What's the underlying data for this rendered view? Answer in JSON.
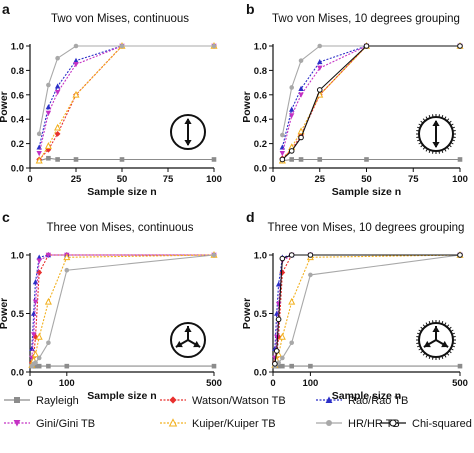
{
  "chart_data": [
    {
      "type": "line",
      "panel_label": "a",
      "title": "Two von Mises, continuous",
      "xlabel": "Sample size n",
      "ylabel": "Power",
      "xlim": [
        0,
        100
      ],
      "ylim": [
        0,
        1.0
      ],
      "xticks": [
        0,
        25,
        50,
        75,
        100
      ],
      "yticks": [
        0.0,
        0.2,
        0.4,
        0.6,
        0.8,
        1.0
      ],
      "grid": false,
      "icon": "bimodal-axial-icon",
      "series": [
        {
          "name": "Rayleigh",
          "x": [
            5,
            10,
            15,
            25,
            50,
            100
          ],
          "y": [
            0.06,
            0.08,
            0.07,
            0.07,
            0.07,
            0.07
          ]
        },
        {
          "name": "Watson/Watson TB",
          "x": [
            5,
            10,
            15,
            25,
            50,
            100
          ],
          "y": [
            0.07,
            0.15,
            0.28,
            0.6,
            1.0,
            1.0
          ]
        },
        {
          "name": "Rao/Rao TB",
          "x": [
            5,
            10,
            15,
            25,
            50,
            100
          ],
          "y": [
            0.17,
            0.5,
            0.67,
            0.88,
            1.0,
            1.0
          ]
        },
        {
          "name": "Gini/Gini TB",
          "x": [
            5,
            10,
            15,
            25,
            50,
            100
          ],
          "y": [
            0.12,
            0.45,
            0.62,
            0.85,
            1.0,
            1.0
          ]
        },
        {
          "name": "Kuiper/Kuiper TB",
          "x": [
            5,
            10,
            15,
            25,
            50,
            100
          ],
          "y": [
            0.06,
            0.18,
            0.33,
            0.6,
            1.0,
            1.0
          ]
        },
        {
          "name": "HR/HR TB",
          "x": [
            5,
            10,
            15,
            25,
            50,
            100
          ],
          "y": [
            0.28,
            0.68,
            0.9,
            1.0,
            1.0,
            1.0
          ]
        }
      ]
    },
    {
      "type": "line",
      "panel_label": "b",
      "title": "Two von Mises, 10 degrees grouping",
      "xlabel": "Sample size n",
      "ylabel": "Power",
      "xlim": [
        0,
        100
      ],
      "ylim": [
        0,
        1.0
      ],
      "xticks": [
        0,
        25,
        50,
        75,
        100
      ],
      "yticks": [
        0.0,
        0.2,
        0.4,
        0.6,
        0.8,
        1.0
      ],
      "grid": false,
      "icon": "bimodal-axial-grouped-icon",
      "series": [
        {
          "name": "Rayleigh",
          "x": [
            5,
            10,
            15,
            25,
            50,
            100
          ],
          "y": [
            0.06,
            0.07,
            0.07,
            0.07,
            0.07,
            0.07
          ]
        },
        {
          "name": "Watson/Watson TB",
          "x": [
            5,
            10,
            15,
            25,
            50,
            100
          ],
          "y": [
            0.08,
            0.15,
            0.27,
            0.6,
            1.0,
            1.0
          ]
        },
        {
          "name": "Rao/Rao TB",
          "x": [
            5,
            10,
            15,
            25,
            50,
            100
          ],
          "y": [
            0.17,
            0.48,
            0.65,
            0.87,
            1.0,
            1.0
          ]
        },
        {
          "name": "Gini/Gini TB",
          "x": [
            5,
            10,
            15,
            25,
            50,
            100
          ],
          "y": [
            0.12,
            0.43,
            0.6,
            0.82,
            1.0,
            1.0
          ]
        },
        {
          "name": "Kuiper/Kuiper TB",
          "x": [
            5,
            10,
            15,
            25,
            50,
            100
          ],
          "y": [
            0.06,
            0.17,
            0.3,
            0.6,
            1.0,
            1.0
          ]
        },
        {
          "name": "HR/HR TB",
          "x": [
            5,
            10,
            15,
            25,
            50,
            100
          ],
          "y": [
            0.27,
            0.66,
            0.88,
            1.0,
            1.0,
            1.0
          ]
        },
        {
          "name": "Chi-squared",
          "x": [
            5,
            10,
            15,
            25,
            50,
            100
          ],
          "y": [
            0.07,
            0.14,
            0.25,
            0.64,
            1.0,
            1.0
          ]
        }
      ]
    },
    {
      "type": "line",
      "panel_label": "c",
      "title": "Three von Mises, continuous",
      "xlabel": "Sample size n",
      "ylabel": "Power",
      "xlim": [
        0,
        500
      ],
      "ylim": [
        0,
        1.0
      ],
      "xticks": [
        0,
        100,
        500
      ],
      "yticks": [
        0.0,
        0.5,
        1.0
      ],
      "grid": false,
      "icon": "trimodal-icon",
      "series": [
        {
          "name": "Rayleigh",
          "x": [
            5,
            10,
            15,
            25,
            50,
            100,
            500
          ],
          "y": [
            0.05,
            0.05,
            0.05,
            0.05,
            0.05,
            0.05,
            0.05
          ]
        },
        {
          "name": "Watson/Watson TB",
          "x": [
            5,
            10,
            15,
            25,
            50,
            100,
            500
          ],
          "y": [
            0.08,
            0.13,
            0.3,
            0.85,
            1.0,
            1.0,
            1.0
          ]
        },
        {
          "name": "Rao/Rao TB",
          "x": [
            5,
            10,
            15,
            25,
            50,
            100,
            500
          ],
          "y": [
            0.2,
            0.5,
            0.77,
            0.98,
            1.0,
            1.0,
            1.0
          ]
        },
        {
          "name": "Gini/Gini TB",
          "x": [
            5,
            10,
            15,
            25,
            50,
            100,
            500
          ],
          "y": [
            0.12,
            0.32,
            0.6,
            0.95,
            1.0,
            1.0,
            1.0
          ]
        },
        {
          "name": "Kuiper/Kuiper TB",
          "x": [
            5,
            10,
            15,
            25,
            50,
            100,
            500
          ],
          "y": [
            0.06,
            0.1,
            0.15,
            0.3,
            0.6,
            0.98,
            1.0
          ]
        },
        {
          "name": "HR/HR TB",
          "x": [
            5,
            10,
            15,
            25,
            50,
            100,
            500
          ],
          "y": [
            0.05,
            0.07,
            0.08,
            0.12,
            0.25,
            0.87,
            1.0
          ]
        }
      ]
    },
    {
      "type": "line",
      "panel_label": "d",
      "title": "Three von Mises, 10 degrees grouping",
      "xlabel": "Sample size n",
      "ylabel": "Power",
      "xlim": [
        0,
        500
      ],
      "ylim": [
        0,
        1.0
      ],
      "xticks": [
        0,
        100,
        500
      ],
      "yticks": [
        0.0,
        0.5,
        1.0
      ],
      "grid": false,
      "icon": "trimodal-grouped-icon",
      "series": [
        {
          "name": "Rayleigh",
          "x": [
            5,
            10,
            15,
            25,
            50,
            100,
            500
          ],
          "y": [
            0.05,
            0.05,
            0.05,
            0.05,
            0.05,
            0.05,
            0.05
          ]
        },
        {
          "name": "Watson/Watson TB",
          "x": [
            5,
            10,
            15,
            25,
            50,
            100,
            500
          ],
          "y": [
            0.08,
            0.13,
            0.3,
            0.85,
            1.0,
            1.0,
            1.0
          ]
        },
        {
          "name": "Rao/Rao TB",
          "x": [
            5,
            10,
            15,
            25,
            50,
            100,
            500
          ],
          "y": [
            0.2,
            0.5,
            0.75,
            0.98,
            1.0,
            1.0,
            1.0
          ]
        },
        {
          "name": "Gini/Gini TB",
          "x": [
            5,
            10,
            15,
            25,
            50,
            100,
            500
          ],
          "y": [
            0.12,
            0.3,
            0.58,
            0.95,
            1.0,
            1.0,
            1.0
          ]
        },
        {
          "name": "Kuiper/Kuiper TB",
          "x": [
            5,
            10,
            15,
            25,
            50,
            100,
            500
          ],
          "y": [
            0.06,
            0.1,
            0.15,
            0.3,
            0.6,
            0.98,
            1.0
          ]
        },
        {
          "name": "HR/HR TB",
          "x": [
            5,
            10,
            15,
            25,
            50,
            100,
            500
          ],
          "y": [
            0.05,
            0.07,
            0.08,
            0.12,
            0.25,
            0.83,
            1.0
          ]
        },
        {
          "name": "Chi-squared",
          "x": [
            5,
            10,
            15,
            25,
            50,
            100,
            500
          ],
          "y": [
            0.07,
            0.18,
            0.45,
            0.97,
            1.0,
            1.0,
            1.0
          ]
        }
      ]
    }
  ],
  "legend": {
    "placement": "bottom",
    "entries": [
      {
        "name": "Rayleigh",
        "color": "#8c8c8c",
        "marker": "square",
        "dash": "solid"
      },
      {
        "name": "Watson/Watson TB",
        "color": "#e8302e",
        "marker": "diamond",
        "dash": "dotted"
      },
      {
        "name": "Rao/Rao TB",
        "color": "#2b2fc7",
        "marker": "triangle",
        "dash": "dotted"
      },
      {
        "name": "Gini/Gini TB",
        "color": "#c431c4",
        "marker": "triangle-down",
        "dash": "dotted"
      },
      {
        "name": "Kuiper/Kuiper TB",
        "color": "#f2b01e",
        "marker": "triangle-open",
        "dash": "dotted"
      },
      {
        "name": "HR/HR TB",
        "color": "#a8a8a8",
        "marker": "circle",
        "dash": "solid"
      },
      {
        "name": "Chi-squared",
        "color": "#111111",
        "marker": "circle-open",
        "dash": "solid"
      }
    ]
  }
}
